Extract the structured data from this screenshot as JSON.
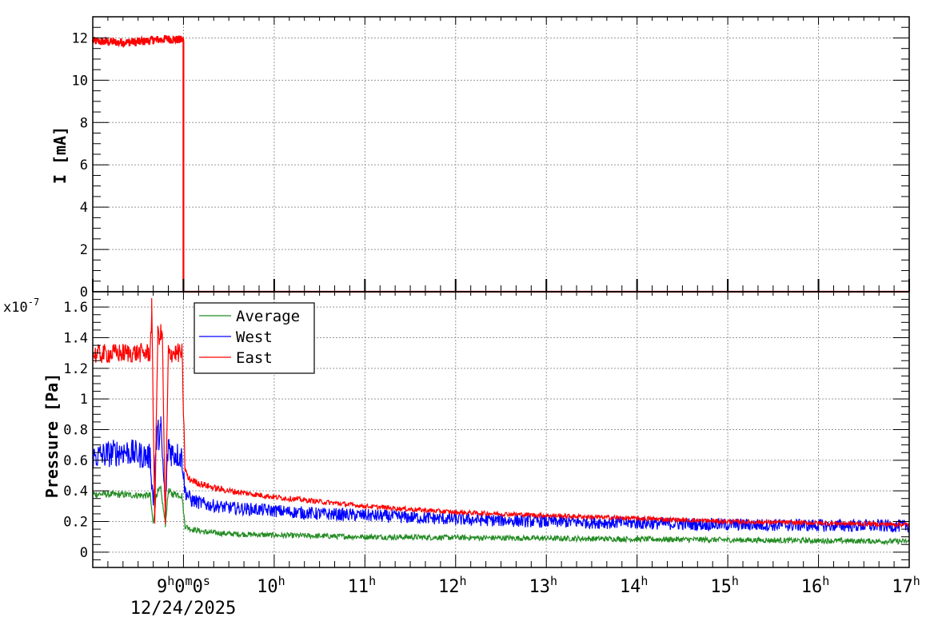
{
  "chart_data": [
    {
      "type": "line",
      "ylabel": "I [mA]",
      "ylim": [
        0,
        13
      ],
      "yticks": [
        0,
        2,
        4,
        6,
        8,
        10,
        12
      ],
      "x_ticks": {
        "start_label": {
          "hour": "9",
          "min": "0",
          "sec": "0",
          "sfx_h": "h",
          "sfx_m": "m",
          "sfx_s": "s",
          "date": "12/24/2025"
        },
        "hours": [
          {
            "hour": "10",
            "sfx": "h"
          },
          {
            "hour": "11",
            "sfx": "h"
          },
          {
            "hour": "12",
            "sfx": "h"
          },
          {
            "hour": "13",
            "sfx": "h"
          },
          {
            "hour": "14",
            "sfx": "h"
          },
          {
            "hour": "15",
            "sfx": "h"
          },
          {
            "hour": "16",
            "sfx": "h"
          },
          {
            "hour": "17",
            "sfx": "h"
          }
        ]
      },
      "xlim": [
        "2025-12-24 08:00",
        "2025-12-24 17:00"
      ],
      "grid": true,
      "series": [
        {
          "color": "#ff0000",
          "x": [
            "08:00",
            "08:15",
            "08:30",
            "08:40",
            "08:50",
            "09:00",
            "09:00",
            "10:00",
            "12:00",
            "14:00",
            "17:00"
          ],
          "y": [
            11.85,
            11.8,
            11.8,
            11.9,
            11.95,
            11.9,
            0,
            0,
            0,
            0,
            0
          ]
        }
      ]
    },
    {
      "type": "line",
      "ylabel": "Pressure [Pa]",
      "y_multiplier": {
        "base": "x10",
        "exponent": "-7"
      },
      "ylim": [
        -0.1,
        1.7
      ],
      "yticks": [
        0,
        0.2,
        0.4,
        0.6,
        0.8,
        1,
        1.2,
        1.4,
        1.6
      ],
      "ytick_labels": [
        "0",
        "0.2",
        "0.4",
        "0.6",
        "0.8",
        "1",
        "1.2",
        "1.4",
        "1.6"
      ],
      "xlim": [
        "2025-12-24 08:00",
        "2025-12-24 17:00"
      ],
      "grid": true,
      "legend": {
        "placement": "top-left"
      },
      "series": [
        {
          "name": "Average",
          "color": "#228b22",
          "x": [
            "08:00",
            "08:38",
            "08:40",
            "08:42",
            "08:45",
            "08:48",
            "08:50",
            "08:52",
            "08:55",
            "08:59",
            "09:01",
            "09:05",
            "09:15",
            "09:30",
            "10:00",
            "10:30",
            "11:00",
            "12:00",
            "13:00",
            "14:00",
            "15:00",
            "16:00",
            "17:00"
          ],
          "y": [
            0.38,
            0.37,
            0.18,
            0.38,
            0.41,
            0.18,
            0.4,
            0.38,
            0.38,
            0.37,
            0.17,
            0.15,
            0.13,
            0.12,
            0.11,
            0.105,
            0.1,
            0.095,
            0.09,
            0.085,
            0.08,
            0.075,
            0.07
          ]
        },
        {
          "name": "West",
          "color": "#0000ff",
          "x": [
            "08:00",
            "08:20",
            "08:38",
            "08:40",
            "08:42",
            "08:45",
            "08:48",
            "08:50",
            "08:52",
            "08:55",
            "08:59",
            "09:01",
            "09:05",
            "09:15",
            "09:30",
            "10:00",
            "10:30",
            "11:00",
            "12:00",
            "13:00",
            "14:00",
            "15:00",
            "16:00",
            "17:00"
          ],
          "y": [
            0.62,
            0.66,
            0.62,
            0.32,
            0.74,
            0.8,
            0.3,
            0.72,
            0.65,
            0.64,
            0.62,
            0.4,
            0.34,
            0.31,
            0.29,
            0.27,
            0.25,
            0.24,
            0.215,
            0.2,
            0.19,
            0.18,
            0.175,
            0.17
          ]
        },
        {
          "name": "East",
          "color": "#ff0000",
          "x": [
            "08:00",
            "08:20",
            "08:38",
            "08:39",
            "08:41",
            "08:43",
            "08:46",
            "08:48",
            "08:50",
            "08:52",
            "08:55",
            "08:59",
            "09:01",
            "09:03",
            "09:10",
            "09:20",
            "09:30",
            "10:00",
            "10:30",
            "11:00",
            "11:30",
            "12:00",
            "13:00",
            "14:00",
            "15:00",
            "16:00",
            "17:00"
          ],
          "y": [
            1.29,
            1.3,
            1.3,
            1.59,
            0.2,
            1.42,
            1.42,
            0.18,
            1.3,
            1.3,
            1.3,
            1.3,
            0.55,
            0.48,
            0.45,
            0.42,
            0.4,
            0.36,
            0.33,
            0.3,
            0.28,
            0.26,
            0.24,
            0.22,
            0.2,
            0.19,
            0.18
          ]
        }
      ]
    }
  ]
}
